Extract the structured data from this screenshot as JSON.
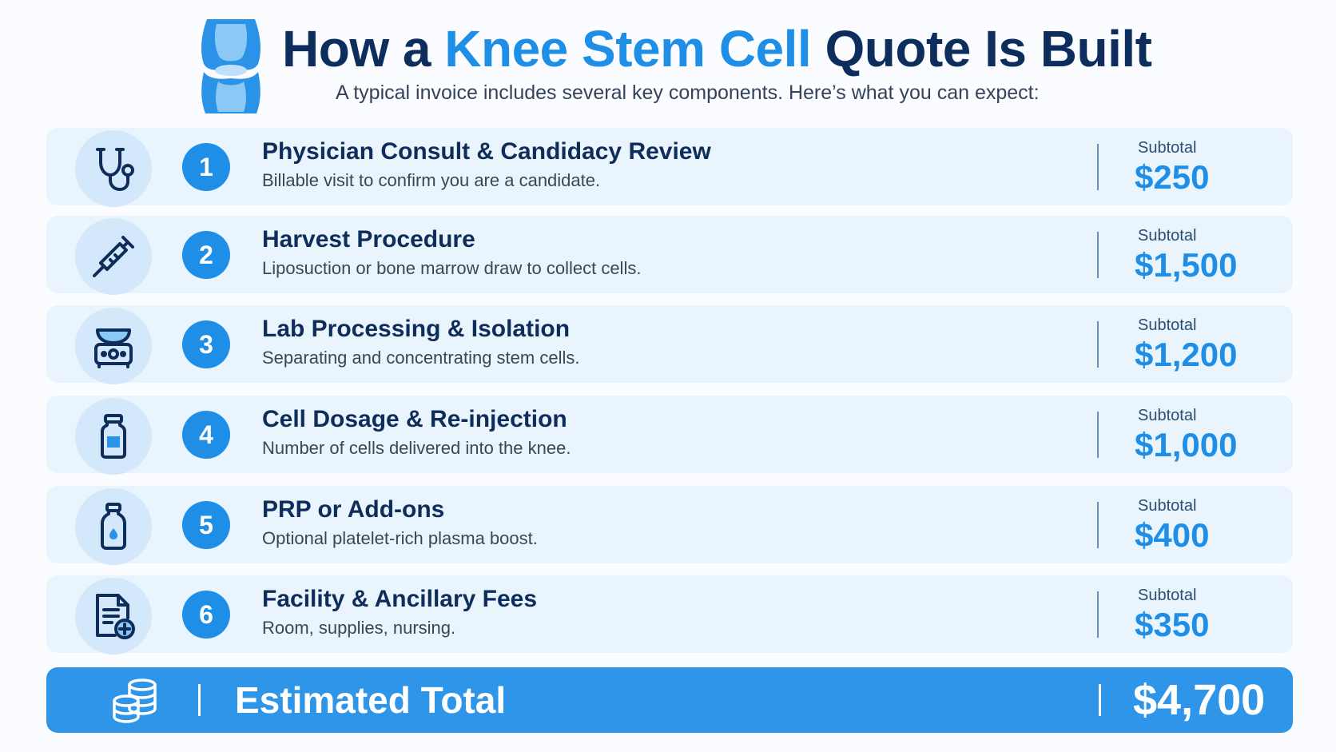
{
  "header": {
    "title_part1": "How a ",
    "title_accent": "Knee Stem Cell",
    "title_part2": " Quote Is Built",
    "subtitle": "A typical invoice includes several key components. Here’s what you can expect:"
  },
  "items": [
    {
      "number": "1",
      "icon": "stethoscope-icon",
      "title": "Physician Consult & Candidacy Review",
      "description": "Billable visit to confirm you are a candidate.",
      "subtotal_label": "Subtotal",
      "subtotal": "$250"
    },
    {
      "number": "2",
      "icon": "syringe-icon",
      "title": "Harvest Procedure",
      "description": "Liposuction or bone marrow draw to collect cells.",
      "subtotal_label": "Subtotal",
      "subtotal": "$1,500"
    },
    {
      "number": "3",
      "icon": "centrifuge-icon",
      "title": "Lab Processing & Isolation",
      "description": "Separating and concentrating stem cells.",
      "subtotal_label": "Subtotal",
      "subtotal": "$1,200"
    },
    {
      "number": "4",
      "icon": "vial-icon",
      "title": "Cell Dosage & Re-injection",
      "description": "Number of cells delivered into the knee.",
      "subtotal_label": "Subtotal",
      "subtotal": "$1,000"
    },
    {
      "number": "5",
      "icon": "plasma-bottle-icon",
      "title": "PRP or Add-ons",
      "description": "Optional platelet-rich plasma boost.",
      "subtotal_label": "Subtotal",
      "subtotal": "$400"
    },
    {
      "number": "6",
      "icon": "document-plus-icon",
      "title": "Facility & Ancillary Fees",
      "description": "Room, supplies, nursing.",
      "subtotal_label": "Subtotal",
      "subtotal": "$350"
    }
  ],
  "total": {
    "icon": "coins-icon",
    "label": "Estimated Total",
    "value": "$4,700"
  },
  "colors": {
    "accent": "#1e8ee6",
    "navy": "#0d2d5c",
    "row_bg": "#e9f4fd",
    "total_bar": "#2f95e8"
  }
}
